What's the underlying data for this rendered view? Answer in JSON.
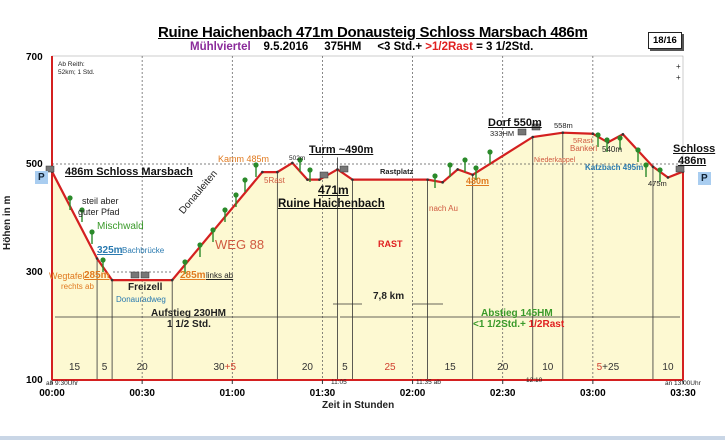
{
  "title": "Ruine Haichenbach 471m Donausteig Schloss Marsbach 486m",
  "subtitle": {
    "region": "Mühlviertel",
    "date": "9.5.2016",
    "hm": "375HM",
    "time": "<3 Std.+",
    "rest": ">1/2Rast",
    "total": "= 3 1/2Std."
  },
  "page": "18/16",
  "colors": {
    "profile": "#d42020",
    "fill": "#fdf9d2",
    "tree": "#2a8a2a",
    "grid": "#555555"
  },
  "notes": {
    "ab_reith": "Ab Reith:",
    "ab_reith2": "52km; 1 Std."
  },
  "parking_icon": "P",
  "labels": {
    "start": "486m Schloss Marsbach",
    "steep1": "steil aber",
    "steep2": "guter Pfad",
    "mischwald": "Mischwald",
    "bach_m": "325m",
    "bach": "Bachbrücke",
    "wegtafel": "Wegtafel",
    "wegtafel_m": "285m",
    "rechts": "rechts ab",
    "freizell": "Freizell",
    "donauradweg": "Donauradweg",
    "links_m": "285m",
    "links": "links ab",
    "donauleiten": "Donauleiten",
    "weg88": "WEG 88",
    "kamm": "Kamm 485m",
    "rast5a": "5Rast",
    "m502": "502m",
    "turm": "Turm ~490m",
    "ruine_m": "471m",
    "ruine": "Ruine Haichenbach",
    "rastplatz": "Rastplatz",
    "nach_au": "nach Au",
    "rast": "RAST",
    "m480": "480m",
    "dorf": "Dorf 550m",
    "hm333": "333HM",
    "m558": "558m",
    "niederkappel": "Niederkappel",
    "rast5b": "5Rast",
    "bankerl": "Bankerl",
    "m540": "540m",
    "katzbach": "Katzbach 495m",
    "m475": "475m",
    "schloss": "Schloss",
    "schloss_m": "486m",
    "km": "7,8 km",
    "aufstieg": "Aufstieg 230HM",
    "aufstieg2": "1 1/2 Std.",
    "abstieg": "Abstieg 145HM",
    "abstieg2": "<1 1/2Std.+",
    "abstieg3": "1/2Rast",
    "t_start": "ab 9:30Uhr",
    "t_1105": "11:05",
    "t_1135": "11:35 ab",
    "t_1210": "12:10",
    "t_end": "an 13:00Uhr"
  },
  "segments": [
    {
      "dur": "15"
    },
    {
      "dur": "5"
    },
    {
      "dur": "20"
    },
    {
      "dur": "30",
      "rest": "+5"
    },
    {
      "dur": "20"
    },
    {
      "dur": "5"
    },
    {
      "rest": "25"
    },
    {
      "dur": "15"
    },
    {
      "dur": "20"
    },
    {
      "dur": "10"
    },
    {
      "rest": "5",
      "dur": "+25"
    },
    {
      "dur": "10"
    }
  ],
  "chart_data": {
    "type": "area",
    "xlabel": "Zeit in Stunden",
    "ylabel": "Höhen in m",
    "ylim": [
      100,
      700
    ],
    "yticks": [
      "100",
      "300",
      "500",
      "700"
    ],
    "xlim": [
      "00:00",
      "03:30"
    ],
    "xticks": [
      "00:00",
      "00:30",
      "01:00",
      "01:30",
      "02:00",
      "02:30",
      "03:00",
      "03:30"
    ],
    "grid": "dashed at 30 min; dashed 300/500m",
    "series": [
      {
        "x": [
          "00:00",
          "00:15",
          "00:20",
          "00:40",
          "01:10",
          "01:15",
          "01:20",
          "01:25",
          "01:29",
          "01:35",
          "01:40",
          "02:05",
          "02:10",
          "02:15",
          "02:20",
          "02:40",
          "02:50",
          "03:00",
          "03:05",
          "03:10",
          "03:20",
          "03:25",
          "03:30"
        ],
        "y": [
          486,
          325,
          285,
          285,
          485,
          485,
          502,
          471,
          471,
          490,
          471,
          471,
          466,
          490,
          480,
          550,
          558,
          556,
          540,
          555,
          495,
          475,
          486
        ]
      }
    ]
  }
}
